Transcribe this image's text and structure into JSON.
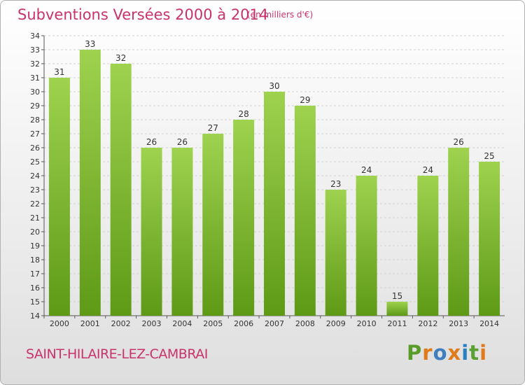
{
  "header": {
    "title": "Subventions Versées 2000 à 2014",
    "unit": "(en milliers d'€)"
  },
  "footer": {
    "city": "SAINT-HILAIRE-LEZ-CAMBRAI",
    "logo": "Proxiti"
  },
  "colors": {
    "title": "#c8336c",
    "bar_top": "#9ed24f",
    "bar_bottom": "#5e9a16",
    "logo_letters": [
      "#5a9c2a",
      "#e07b1b",
      "#3f7fbf",
      "#e07b1b",
      "#2a7fc0",
      "#5aa032",
      "#e07b1b"
    ]
  },
  "chart_data": {
    "type": "bar",
    "title": "Subventions Versées 2000 à 2014",
    "subtitle": "(en milliers d'€)",
    "categories": [
      "2000",
      "2001",
      "2002",
      "2003",
      "2004",
      "2005",
      "2006",
      "2007",
      "2008",
      "2009",
      "2010",
      "2011",
      "2012",
      "2013",
      "2014"
    ],
    "values": [
      31,
      33,
      32,
      26,
      26,
      27,
      28,
      30,
      29,
      23,
      24,
      15,
      24,
      26,
      25
    ],
    "ylim": [
      14,
      34
    ],
    "yticks": [
      14,
      15,
      16,
      17,
      18,
      19,
      20,
      21,
      22,
      23,
      24,
      25,
      26,
      27,
      28,
      29,
      30,
      31,
      32,
      33,
      34
    ],
    "grid": true,
    "data_labels": true
  }
}
